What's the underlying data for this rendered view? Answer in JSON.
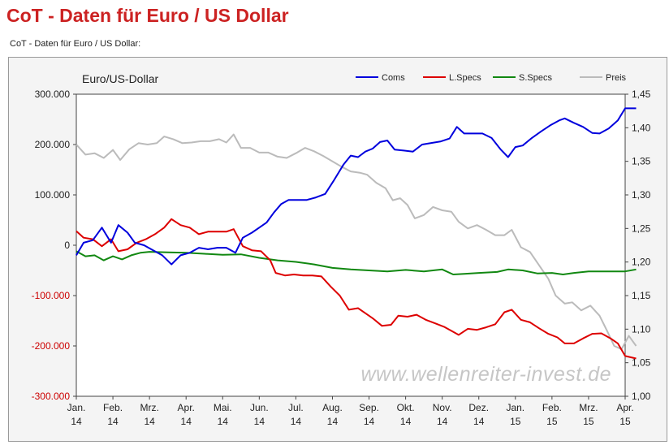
{
  "page": {
    "title": "CoT - Daten für Euro / US Dollar",
    "subtitle": "CoT - Daten für Euro / US Dollar:"
  },
  "colors": {
    "title": "#cc2222",
    "coms": "#0000dd",
    "lspecs": "#dd0000",
    "sspecs": "#118811",
    "preis": "#bbbbbb",
    "left_axis_negative": "#cc0000"
  },
  "chart_data": {
    "type": "line",
    "title": "Euro/US-Dollar",
    "watermark": "www.wellenreiter-invest.de",
    "x_labels": [
      {
        "month": "Jan.",
        "year": "14"
      },
      {
        "month": "Feb.",
        "year": "14"
      },
      {
        "month": "Mrz.",
        "year": "14"
      },
      {
        "month": "Apr.",
        "year": "14"
      },
      {
        "month": "Mai.",
        "year": "14"
      },
      {
        "month": "Jun.",
        "year": "14"
      },
      {
        "month": "Jul.",
        "year": "14"
      },
      {
        "month": "Aug.",
        "year": "14"
      },
      {
        "month": "Sep.",
        "year": "14"
      },
      {
        "month": "Okt.",
        "year": "14"
      },
      {
        "month": "Nov.",
        "year": "14"
      },
      {
        "month": "Dez.",
        "year": "14"
      },
      {
        "month": "Jan.",
        "year": "15"
      },
      {
        "month": "Feb.",
        "year": "15"
      },
      {
        "month": "Mrz.",
        "year": "15"
      },
      {
        "month": "Apr.",
        "year": "15"
      }
    ],
    "x_range": [
      0,
      15
    ],
    "left_axis": {
      "range": [
        -300000,
        300000
      ],
      "ticks": [
        {
          "value": 300000,
          "label": "300.000"
        },
        {
          "value": 200000,
          "label": "200.000"
        },
        {
          "value": 100000,
          "label": "100.000"
        },
        {
          "value": 0,
          "label": "0"
        },
        {
          "value": -100000,
          "label": "-100.000"
        },
        {
          "value": -200000,
          "label": "-200.000"
        },
        {
          "value": -300000,
          "label": "-300.000"
        }
      ]
    },
    "right_axis": {
      "range": [
        1.0,
        1.45
      ],
      "ticks": [
        {
          "value": 1.45,
          "label": "1,45"
        },
        {
          "value": 1.4,
          "label": "1,40"
        },
        {
          "value": 1.35,
          "label": "1,35"
        },
        {
          "value": 1.3,
          "label": "1,30"
        },
        {
          "value": 1.25,
          "label": "1,25"
        },
        {
          "value": 1.2,
          "label": "1,20"
        },
        {
          "value": 1.15,
          "label": "1,15"
        },
        {
          "value": 1.1,
          "label": "1,10"
        },
        {
          "value": 1.05,
          "label": "1,05"
        },
        {
          "value": 1.0,
          "label": "1,00"
        }
      ]
    },
    "series": [
      {
        "name": "Coms",
        "axis": "left",
        "color": "#0000dd",
        "points": [
          [
            0,
            -20000
          ],
          [
            0.2,
            5000
          ],
          [
            0.45,
            10000
          ],
          [
            0.7,
            35000
          ],
          [
            0.95,
            5000
          ],
          [
            1.15,
            40000
          ],
          [
            1.4,
            25000
          ],
          [
            1.6,
            5000
          ],
          [
            1.85,
            0
          ],
          [
            2.1,
            -10000
          ],
          [
            2.35,
            -20000
          ],
          [
            2.6,
            -38000
          ],
          [
            2.85,
            -20000
          ],
          [
            3.1,
            -15000
          ],
          [
            3.35,
            -5000
          ],
          [
            3.6,
            -8000
          ],
          [
            3.85,
            -5000
          ],
          [
            4.1,
            -5000
          ],
          [
            4.35,
            -15000
          ],
          [
            4.55,
            15000
          ],
          [
            4.8,
            25000
          ],
          [
            5.0,
            35000
          ],
          [
            5.2,
            45000
          ],
          [
            5.4,
            65000
          ],
          [
            5.6,
            82000
          ],
          [
            5.8,
            90000
          ],
          [
            6.0,
            90000
          ],
          [
            6.3,
            90000
          ],
          [
            6.55,
            95000
          ],
          [
            6.8,
            102000
          ],
          [
            7.05,
            130000
          ],
          [
            7.3,
            160000
          ],
          [
            7.5,
            178000
          ],
          [
            7.7,
            175000
          ],
          [
            7.9,
            186000
          ],
          [
            8.1,
            192000
          ],
          [
            8.3,
            205000
          ],
          [
            8.5,
            208000
          ],
          [
            8.7,
            190000
          ],
          [
            8.95,
            188000
          ],
          [
            9.2,
            186000
          ],
          [
            9.45,
            200000
          ],
          [
            9.7,
            203000
          ],
          [
            9.95,
            206000
          ],
          [
            10.2,
            212000
          ],
          [
            10.4,
            235000
          ],
          [
            10.6,
            222000
          ],
          [
            10.85,
            222000
          ],
          [
            11.1,
            222000
          ],
          [
            11.35,
            213000
          ],
          [
            11.6,
            190000
          ],
          [
            11.8,
            175000
          ],
          [
            12.0,
            195000
          ],
          [
            12.2,
            198000
          ],
          [
            12.45,
            213000
          ],
          [
            12.7,
            226000
          ],
          [
            12.95,
            238000
          ],
          [
            13.2,
            248000
          ],
          [
            13.35,
            252000
          ],
          [
            13.6,
            243000
          ],
          [
            13.85,
            235000
          ],
          [
            14.1,
            223000
          ],
          [
            14.3,
            222000
          ],
          [
            14.55,
            232000
          ],
          [
            14.8,
            248000
          ],
          [
            15.0,
            272000
          ],
          [
            15.3,
            272000
          ]
        ]
      },
      {
        "name": "L.Specs",
        "axis": "left",
        "color": "#dd0000",
        "points": [
          [
            0,
            28000
          ],
          [
            0.2,
            15000
          ],
          [
            0.45,
            12000
          ],
          [
            0.7,
            -2000
          ],
          [
            0.95,
            12000
          ],
          [
            1.15,
            -12000
          ],
          [
            1.4,
            -8000
          ],
          [
            1.65,
            5000
          ],
          [
            1.9,
            12000
          ],
          [
            2.15,
            22000
          ],
          [
            2.4,
            35000
          ],
          [
            2.6,
            52000
          ],
          [
            2.85,
            40000
          ],
          [
            3.1,
            35000
          ],
          [
            3.35,
            22000
          ],
          [
            3.6,
            27000
          ],
          [
            3.85,
            27000
          ],
          [
            4.1,
            27000
          ],
          [
            4.3,
            32000
          ],
          [
            4.55,
            -2000
          ],
          [
            4.8,
            -10000
          ],
          [
            5.05,
            -12000
          ],
          [
            5.3,
            -30000
          ],
          [
            5.45,
            -55000
          ],
          [
            5.7,
            -60000
          ],
          [
            5.95,
            -58000
          ],
          [
            6.2,
            -60000
          ],
          [
            6.45,
            -60000
          ],
          [
            6.7,
            -62000
          ],
          [
            6.95,
            -82000
          ],
          [
            7.2,
            -100000
          ],
          [
            7.45,
            -128000
          ],
          [
            7.7,
            -125000
          ],
          [
            7.9,
            -135000
          ],
          [
            8.1,
            -145000
          ],
          [
            8.35,
            -160000
          ],
          [
            8.6,
            -158000
          ],
          [
            8.8,
            -140000
          ],
          [
            9.05,
            -142000
          ],
          [
            9.3,
            -138000
          ],
          [
            9.55,
            -148000
          ],
          [
            9.8,
            -155000
          ],
          [
            10.05,
            -162000
          ],
          [
            10.3,
            -172000
          ],
          [
            10.45,
            -178000
          ],
          [
            10.7,
            -166000
          ],
          [
            10.95,
            -168000
          ],
          [
            11.2,
            -163000
          ],
          [
            11.45,
            -157000
          ],
          [
            11.7,
            -133000
          ],
          [
            11.9,
            -128000
          ],
          [
            12.15,
            -148000
          ],
          [
            12.4,
            -153000
          ],
          [
            12.65,
            -165000
          ],
          [
            12.9,
            -176000
          ],
          [
            13.15,
            -183000
          ],
          [
            13.35,
            -195000
          ],
          [
            13.6,
            -195000
          ],
          [
            13.85,
            -185000
          ],
          [
            14.1,
            -176000
          ],
          [
            14.35,
            -175000
          ],
          [
            14.6,
            -185000
          ],
          [
            14.8,
            -195000
          ],
          [
            15.0,
            -220000
          ],
          [
            15.3,
            -225000
          ]
        ]
      },
      {
        "name": "S.Specs",
        "axis": "left",
        "color": "#118811",
        "points": [
          [
            0,
            -12000
          ],
          [
            0.25,
            -22000
          ],
          [
            0.5,
            -20000
          ],
          [
            0.75,
            -30000
          ],
          [
            1.0,
            -22000
          ],
          [
            1.25,
            -28000
          ],
          [
            1.5,
            -20000
          ],
          [
            1.75,
            -15000
          ],
          [
            2.0,
            -13000
          ],
          [
            2.5,
            -14000
          ],
          [
            3.0,
            -15000
          ],
          [
            3.5,
            -17000
          ],
          [
            4.0,
            -19000
          ],
          [
            4.5,
            -18000
          ],
          [
            5.0,
            -25000
          ],
          [
            5.5,
            -30000
          ],
          [
            6.0,
            -33000
          ],
          [
            6.5,
            -38000
          ],
          [
            7.0,
            -45000
          ],
          [
            7.5,
            -48000
          ],
          [
            8.0,
            -50000
          ],
          [
            8.5,
            -52000
          ],
          [
            9.0,
            -49000
          ],
          [
            9.5,
            -52000
          ],
          [
            10.0,
            -48000
          ],
          [
            10.3,
            -58000
          ],
          [
            10.6,
            -57000
          ],
          [
            11.0,
            -55000
          ],
          [
            11.5,
            -53000
          ],
          [
            11.8,
            -48000
          ],
          [
            12.2,
            -50000
          ],
          [
            12.6,
            -56000
          ],
          [
            13.0,
            -55000
          ],
          [
            13.3,
            -58000
          ],
          [
            13.6,
            -55000
          ],
          [
            14.0,
            -52000
          ],
          [
            14.5,
            -52000
          ],
          [
            15.0,
            -52000
          ],
          [
            15.3,
            -48000
          ]
        ]
      },
      {
        "name": "Preis",
        "axis": "right",
        "color": "#bbbbbb",
        "points": [
          [
            0,
            1.375
          ],
          [
            0.25,
            1.36
          ],
          [
            0.5,
            1.362
          ],
          [
            0.75,
            1.355
          ],
          [
            1.0,
            1.367
          ],
          [
            1.2,
            1.352
          ],
          [
            1.45,
            1.368
          ],
          [
            1.7,
            1.377
          ],
          [
            1.95,
            1.375
          ],
          [
            2.2,
            1.377
          ],
          [
            2.4,
            1.387
          ],
          [
            2.65,
            1.383
          ],
          [
            2.9,
            1.377
          ],
          [
            3.15,
            1.378
          ],
          [
            3.4,
            1.38
          ],
          [
            3.65,
            1.38
          ],
          [
            3.9,
            1.383
          ],
          [
            4.1,
            1.378
          ],
          [
            4.3,
            1.39
          ],
          [
            4.5,
            1.37
          ],
          [
            4.75,
            1.37
          ],
          [
            5.0,
            1.363
          ],
          [
            5.25,
            1.363
          ],
          [
            5.5,
            1.357
          ],
          [
            5.75,
            1.355
          ],
          [
            6.0,
            1.362
          ],
          [
            6.25,
            1.37
          ],
          [
            6.5,
            1.365
          ],
          [
            6.75,
            1.358
          ],
          [
            7.0,
            1.35
          ],
          [
            7.25,
            1.342
          ],
          [
            7.5,
            1.335
          ],
          [
            7.75,
            1.333
          ],
          [
            7.95,
            1.33
          ],
          [
            8.2,
            1.318
          ],
          [
            8.45,
            1.31
          ],
          [
            8.65,
            1.292
          ],
          [
            8.85,
            1.295
          ],
          [
            9.05,
            1.285
          ],
          [
            9.25,
            1.265
          ],
          [
            9.5,
            1.27
          ],
          [
            9.75,
            1.282
          ],
          [
            10.0,
            1.277
          ],
          [
            10.25,
            1.275
          ],
          [
            10.45,
            1.26
          ],
          [
            10.7,
            1.25
          ],
          [
            10.95,
            1.255
          ],
          [
            11.2,
            1.248
          ],
          [
            11.45,
            1.24
          ],
          [
            11.7,
            1.24
          ],
          [
            11.9,
            1.248
          ],
          [
            12.15,
            1.222
          ],
          [
            12.4,
            1.215
          ],
          [
            12.65,
            1.195
          ],
          [
            12.9,
            1.175
          ],
          [
            13.1,
            1.15
          ],
          [
            13.35,
            1.138
          ],
          [
            13.55,
            1.14
          ],
          [
            13.8,
            1.128
          ],
          [
            14.05,
            1.135
          ],
          [
            14.3,
            1.12
          ],
          [
            14.5,
            1.098
          ],
          [
            14.7,
            1.075
          ],
          [
            14.9,
            1.07
          ],
          [
            15.1,
            1.09
          ],
          [
            15.3,
            1.075
          ]
        ]
      }
    ],
    "legend": {
      "placement": "top-right",
      "entries": [
        "Coms",
        "L.Specs",
        "S.Specs",
        "Preis"
      ]
    }
  }
}
